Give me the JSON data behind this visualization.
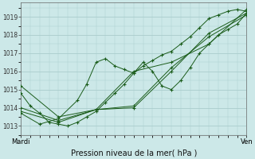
{
  "title": "Pression niveau de la mer( hPa )",
  "xlabel_left": "Mardi",
  "xlabel_right": "Ven",
  "ylim": [
    1012.5,
    1019.8
  ],
  "xlim": [
    0,
    72
  ],
  "yticks": [
    1013,
    1014,
    1015,
    1016,
    1017,
    1018,
    1019
  ],
  "background_color": "#cce8e8",
  "grid_color": "#aacccc",
  "line_color": "#1a5c1a",
  "series": [
    {
      "x": [
        0,
        3,
        6,
        9,
        12,
        15,
        18,
        21,
        24,
        27,
        30,
        33,
        36,
        39,
        42,
        45,
        48,
        51,
        54,
        57,
        60,
        63,
        66,
        69,
        72
      ],
      "y": [
        1014.8,
        1014.1,
        1013.7,
        1013.2,
        1013.1,
        1013.0,
        1013.2,
        1013.5,
        1013.8,
        1014.3,
        1014.8,
        1015.3,
        1015.9,
        1016.3,
        1016.6,
        1016.9,
        1017.1,
        1017.5,
        1017.9,
        1018.4,
        1018.9,
        1019.1,
        1019.3,
        1019.4,
        1019.3
      ]
    },
    {
      "x": [
        0,
        6,
        12,
        18,
        21,
        24,
        27,
        30,
        33,
        36,
        39,
        42,
        45,
        48,
        51,
        54,
        57,
        60,
        63,
        66,
        69,
        72
      ],
      "y": [
        1013.7,
        1013.1,
        1013.4,
        1014.4,
        1015.3,
        1016.5,
        1016.7,
        1016.3,
        1016.1,
        1015.9,
        1016.5,
        1016.0,
        1015.2,
        1015.0,
        1015.5,
        1016.2,
        1017.0,
        1017.5,
        1018.0,
        1018.3,
        1018.6,
        1019.2
      ]
    },
    {
      "x": [
        0,
        12,
        24,
        36,
        48,
        60,
        72
      ],
      "y": [
        1015.2,
        1013.5,
        1013.9,
        1016.0,
        1016.5,
        1017.5,
        1019.4
      ]
    },
    {
      "x": [
        0,
        12,
        24,
        36,
        48,
        60,
        72
      ],
      "y": [
        1014.0,
        1013.3,
        1013.9,
        1014.0,
        1016.0,
        1018.1,
        1019.2
      ]
    },
    {
      "x": [
        0,
        12,
        24,
        36,
        48,
        60,
        72
      ],
      "y": [
        1013.8,
        1013.2,
        1013.9,
        1014.1,
        1016.2,
        1017.9,
        1019.1
      ]
    }
  ]
}
